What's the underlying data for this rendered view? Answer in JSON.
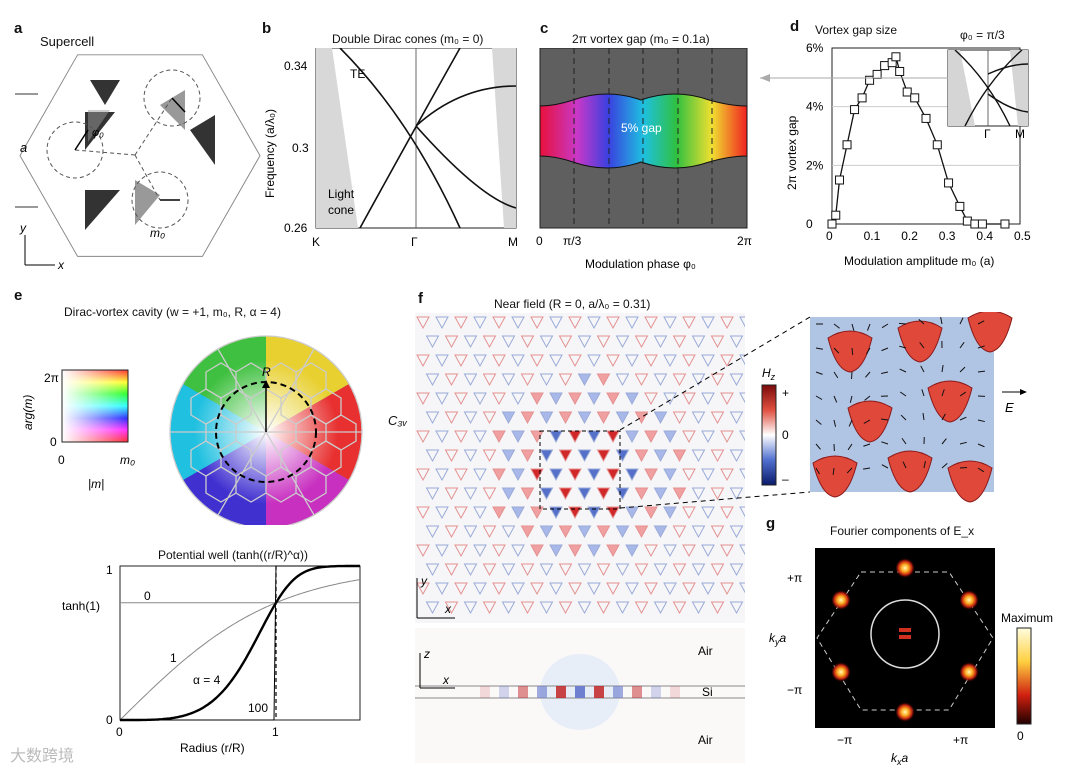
{
  "panels": {
    "a": {
      "label": "a",
      "title": "Supercell",
      "lattice": "a",
      "phi": "φ₀",
      "m0": "m₀",
      "y": "y",
      "x": "x"
    },
    "b": {
      "label": "b",
      "title": "Double Dirac cones (m₀ = 0)",
      "ylabel": "Frequency (a/λ₀)",
      "yticks": [
        "0.34",
        "0.3",
        "0.26"
      ],
      "xticks": [
        "K",
        "Γ",
        "M"
      ],
      "te": "TE",
      "light_cone": "Light\ncone"
    },
    "c": {
      "label": "c",
      "title": "2π vortex gap (m₀ = 0.1a)",
      "xlabel": "Modulation phase φ₀",
      "xticks": [
        "0",
        "π/3",
        "2π"
      ],
      "gap": "5% gap"
    },
    "d": {
      "label": "d",
      "title": "Vortex gap size",
      "ylabel": "2π vortex gap",
      "xlabel": "Modulation amplitude m₀ (a)",
      "inset_title": "φ₀ = π/3",
      "inset_ticks": [
        "Γ",
        "M"
      ]
    },
    "e": {
      "label": "e",
      "title": "Dirac-vortex cavity (w = +1, m₀, R, α = 4)",
      "arg_label": "arg(m)",
      "arg_top": "2π",
      "arg_bottom": "0",
      "m_left": "0",
      "m_right": "m₀",
      "m_label": "|m|",
      "R": "R",
      "well_title": "Potential well (tanh((r/R)^α))",
      "well_x": "Radius (r/R)",
      "well_ytop": "1",
      "well_ymid": "tanh(1)",
      "well_ybot": "0",
      "well_x0": "0",
      "well_x1": "1",
      "curve_labels": [
        "0",
        "1",
        "α = 4",
        "100"
      ]
    },
    "f": {
      "label": "f",
      "title": "Near field (R = 0, a/λ₀ = 0.31)",
      "c3v": "C₃ᵥ",
      "hz": "H_z",
      "hz_plus": "+",
      "hz_zero": "0",
      "hz_minus": "–",
      "E": "E",
      "y": "y",
      "x": "x",
      "z": "z",
      "air_top": "Air",
      "si": "Si",
      "air_bottom": "Air"
    },
    "g": {
      "label": "g",
      "title": "Fourier components of E_x",
      "ylabel": "k_y a",
      "xlabel": "k_x a",
      "yticks": [
        "+π",
        "−π"
      ],
      "xticks": [
        "−π",
        "+π"
      ],
      "max": "Maximum",
      "zero": "0"
    }
  },
  "chart_data": [
    {
      "type": "line",
      "title": "Vortex gap size",
      "xlabel": "Modulation amplitude m₀ (a)",
      "ylabel": "2π vortex gap",
      "xticks": [
        "0",
        "0.1",
        "0.2",
        "0.3",
        "0.4",
        "0.5"
      ],
      "yticks": [
        "0",
        "2%",
        "4%",
        "6%"
      ],
      "xlim": [
        0,
        0.5
      ],
      "ylim": [
        0,
        6
      ],
      "x": [
        0,
        0.01,
        0.02,
        0.04,
        0.06,
        0.08,
        0.1,
        0.12,
        0.14,
        0.16,
        0.17,
        0.18,
        0.2,
        0.22,
        0.25,
        0.28,
        0.31,
        0.34,
        0.36,
        0.38,
        0.4,
        0.46
      ],
      "values": [
        0,
        0.3,
        1.5,
        2.7,
        3.9,
        4.3,
        4.9,
        5.1,
        5.4,
        5.5,
        5.7,
        5.2,
        4.5,
        4.3,
        3.6,
        2.7,
        1.4,
        0.6,
        0.1,
        0,
        0,
        0
      ]
    },
    {
      "type": "line",
      "title": "Potential well (tanh((r/R)^α))",
      "xlabel": "Radius (r/R)",
      "series": [
        {
          "name": "0"
        },
        {
          "name": "1"
        },
        {
          "name": "α = 4"
        },
        {
          "name": "100"
        }
      ],
      "xlim": [
        0,
        2
      ],
      "ylim": [
        0,
        1
      ]
    }
  ],
  "watermark": "大数跨境"
}
